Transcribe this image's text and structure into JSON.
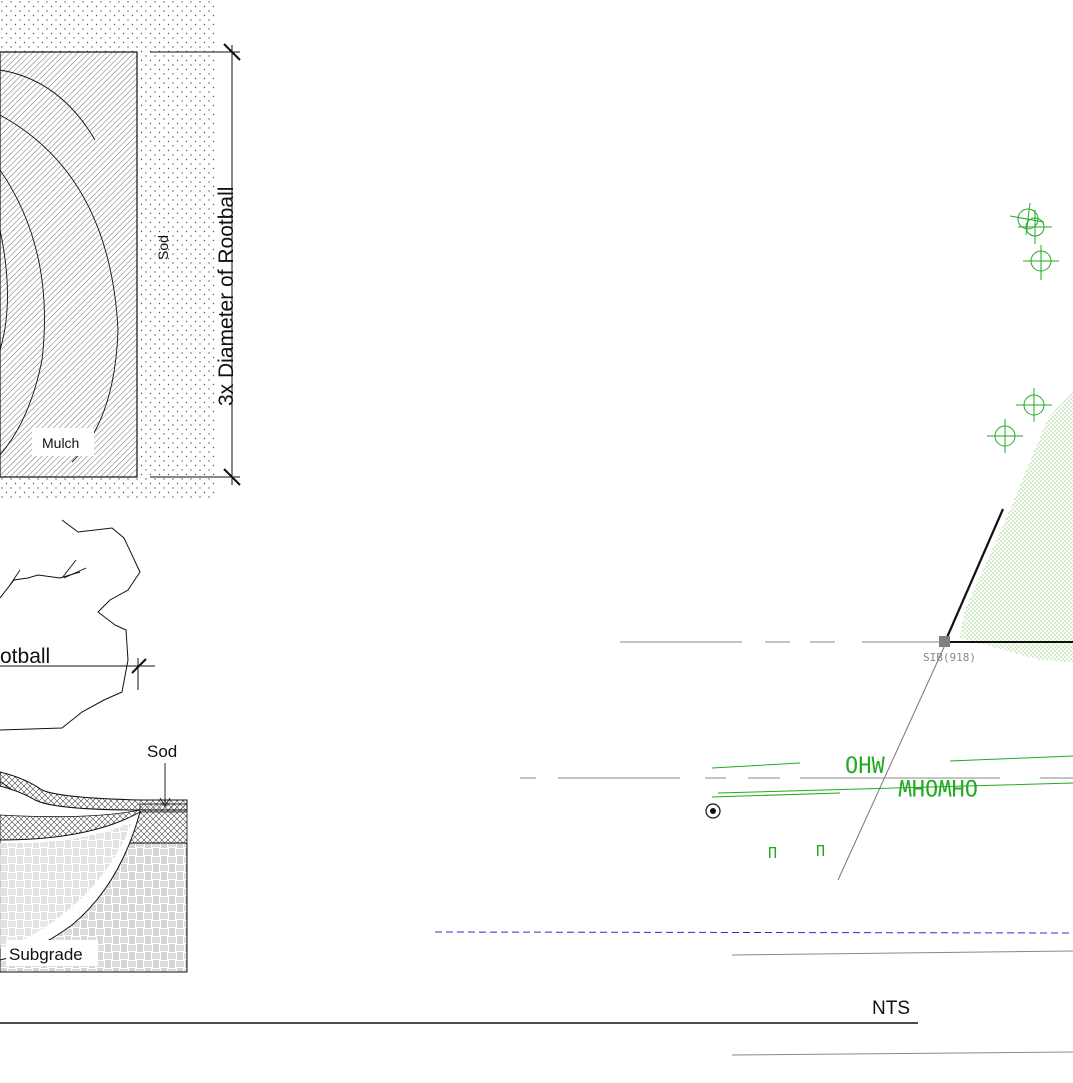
{
  "plan_view": {
    "dimension_label": "3x Diameter of Rootball",
    "sod_label": "Sod",
    "mulch_label": "Mulch"
  },
  "elevation": {
    "rootball_label_fragment": "otball"
  },
  "section": {
    "sod_label": "Sod",
    "subgrade_label": "Subgrade",
    "scale_label": "NTS"
  },
  "survey": {
    "point_label": "SIB(918)",
    "line_code_top": "OHW",
    "line_code_bottom": "OHWOHW",
    "symbol_marks": [
      "Π",
      "Π"
    ],
    "colors": {
      "utility_green": "#22aa22",
      "hatch_green": "#66bb44",
      "boundary_blue": "#2233cc",
      "monument_gray": "#808080"
    }
  }
}
